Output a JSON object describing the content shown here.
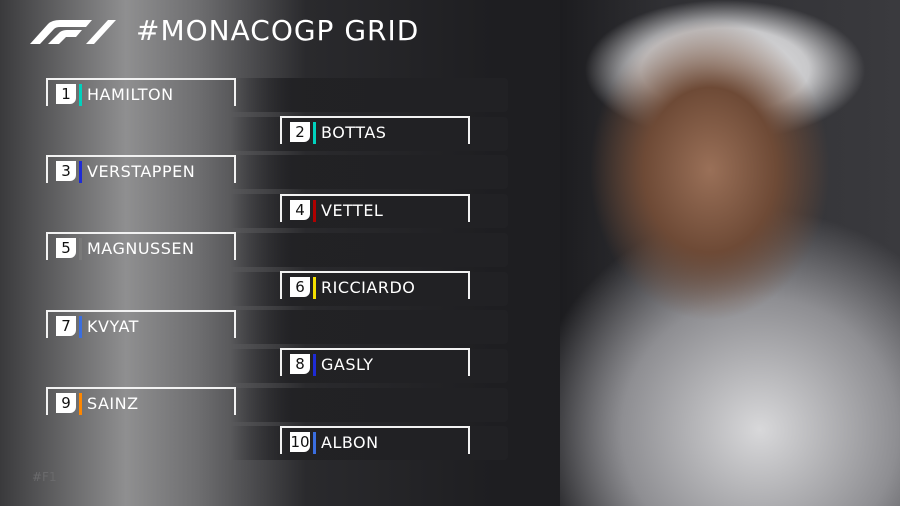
{
  "header": {
    "title": "#MONACOGP GRID",
    "logo_icon": "f1-logo-icon"
  },
  "grid": [
    {
      "position": "1",
      "driver": "HAMILTON",
      "team_color": "#00d2be"
    },
    {
      "position": "2",
      "driver": "BOTTAS",
      "team_color": "#00d2be"
    },
    {
      "position": "3",
      "driver": "VERSTAPPEN",
      "team_color": "#1e2bd6"
    },
    {
      "position": "4",
      "driver": "VETTEL",
      "team_color": "#b00000"
    },
    {
      "position": "5",
      "driver": "MAGNUSSEN",
      "team_color": "#7a7a7a"
    },
    {
      "position": "6",
      "driver": "RICCIARDO",
      "team_color": "#f5e000"
    },
    {
      "position": "7",
      "driver": "KVYAT",
      "team_color": "#3a6ee0"
    },
    {
      "position": "8",
      "driver": "GASLY",
      "team_color": "#1e2bd6"
    },
    {
      "position": "9",
      "driver": "SAINZ",
      "team_color": "#ff8700"
    },
    {
      "position": "10",
      "driver": "ALBON",
      "team_color": "#3a6ee0"
    }
  ],
  "footer": {
    "hashtag": "#F1"
  }
}
